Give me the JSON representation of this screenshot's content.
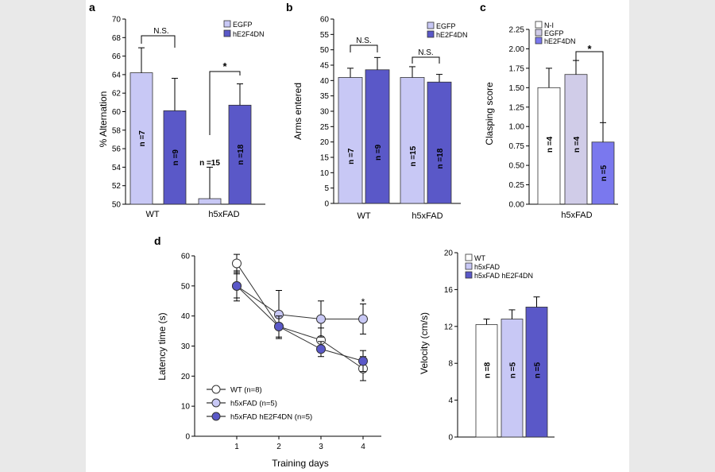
{
  "colors": {
    "egfp": "#c8c8f5",
    "he2f4dn": "#5a58c8",
    "ni": "#ffffff",
    "egfp_c": "#d0cce8",
    "he2f4dn_c": "#7a78ee",
    "wt": "#ffffff",
    "h5xfad": "#c8c8f5",
    "h5xfad_he2f4dn": "#5a58c8"
  },
  "chart_data": [
    {
      "panel": "a",
      "type": "bar",
      "ylabel": "% Alternation",
      "ylim": [
        50,
        70
      ],
      "yticks": [
        "50",
        "52",
        "54",
        "56",
        "58",
        "60",
        "62",
        "64",
        "66",
        "68",
        "70"
      ],
      "categories": [
        "WT",
        "h5xFAD"
      ],
      "legend": [
        "EGFP",
        "hE2F4DN"
      ],
      "bars": [
        {
          "group": 0,
          "series": 0,
          "value": 64.2,
          "err": 2.7,
          "n": "n =7"
        },
        {
          "group": 0,
          "series": 1,
          "value": 60.1,
          "err": 3.5,
          "n": "n =9"
        },
        {
          "group": 1,
          "series": 0,
          "value": 50.6,
          "err": 3.4,
          "n": "n =15"
        },
        {
          "group": 1,
          "series": 1,
          "value": 60.7,
          "err": 2.3,
          "n": "n =18"
        }
      ],
      "annotations": [
        {
          "label": "N.S.",
          "group": 0
        },
        {
          "label": "*",
          "group": 1
        }
      ]
    },
    {
      "panel": "b",
      "type": "bar",
      "ylabel": "Arms entered",
      "ylim": [
        0,
        60
      ],
      "yticks": [
        "0",
        "5",
        "10",
        "15",
        "20",
        "25",
        "30",
        "35",
        "40",
        "45",
        "50",
        "55",
        "60"
      ],
      "categories": [
        "WT",
        "h5xFAD"
      ],
      "legend": [
        "EGFP",
        "hE2F4DN"
      ],
      "bars": [
        {
          "group": 0,
          "series": 0,
          "value": 41,
          "err": 3,
          "n": "n =7"
        },
        {
          "group": 0,
          "series": 1,
          "value": 43.5,
          "err": 4,
          "n": "n =9"
        },
        {
          "group": 1,
          "series": 0,
          "value": 41,
          "err": 3.5,
          "n": "n =15"
        },
        {
          "group": 1,
          "series": 1,
          "value": 39.5,
          "err": 2.5,
          "n": "n =18"
        }
      ],
      "annotations": [
        {
          "label": "N.S.",
          "group": 0
        },
        {
          "label": "N.S.",
          "group": 1
        }
      ]
    },
    {
      "panel": "c",
      "type": "bar",
      "ylabel": "Clasping score",
      "ylim": [
        0,
        2.25
      ],
      "yticks": [
        "0.00",
        "0.25",
        "0.50",
        "0.75",
        "1.00",
        "1.25",
        "1.50",
        "1.75",
        "2.00",
        "2.25"
      ],
      "categories": [
        "h5xFAD"
      ],
      "legend": [
        "N-I",
        "EGFP",
        "hE2F4DN"
      ],
      "bars": [
        {
          "series": 0,
          "value": 1.5,
          "err": 0.25,
          "n": "n =4"
        },
        {
          "series": 1,
          "value": 1.67,
          "err": 0.18,
          "n": "n =4"
        },
        {
          "series": 2,
          "value": 0.8,
          "err": 0.25,
          "n": "n =5"
        }
      ],
      "annotations": [
        {
          "label": "*"
        }
      ]
    },
    {
      "panel": "d",
      "type": "line",
      "xlabel": "Training days",
      "ylabel": "Latency time (s)",
      "x": [
        1,
        2,
        3,
        4
      ],
      "ylim": [
        0,
        60
      ],
      "yticks": [
        "0",
        "10",
        "20",
        "30",
        "40",
        "50",
        "60"
      ],
      "xticks": [
        "1",
        "2",
        "3",
        "4"
      ],
      "series": [
        {
          "name": "WT (n=8)",
          "values": [
            57.5,
            36.5,
            32,
            22.5
          ],
          "err": [
            3,
            4,
            4,
            4
          ]
        },
        {
          "name": "h5xFAD (n=5)",
          "values": [
            50,
            40.5,
            39,
            39
          ],
          "err": [
            5,
            8,
            6,
            5
          ]
        },
        {
          "name": "h5xFAD hE2F4DN (n=5)",
          "values": [
            50,
            36.5,
            29,
            25
          ],
          "err": [
            4,
            3.5,
            2.5,
            3.5
          ]
        }
      ],
      "annotations": [
        {
          "label": "*",
          "x": 4
        }
      ]
    },
    {
      "panel": "d2",
      "type": "bar",
      "ylabel": "Velocity (cm/s)",
      "ylim": [
        0,
        20
      ],
      "yticks": [
        "0",
        "4",
        "8",
        "12",
        "16",
        "20"
      ],
      "legend": [
        "WT",
        "h5xFAD",
        "h5xFAD hE2F4DN"
      ],
      "bars": [
        {
          "series": 0,
          "value": 12.2,
          "err": 0.6,
          "n": "n =8"
        },
        {
          "series": 1,
          "value": 12.8,
          "err": 1,
          "n": "n =5"
        },
        {
          "series": 2,
          "value": 14.1,
          "err": 1.1,
          "n": "n =5"
        }
      ]
    }
  ],
  "panel_labels": [
    "a",
    "b",
    "c",
    "d"
  ]
}
